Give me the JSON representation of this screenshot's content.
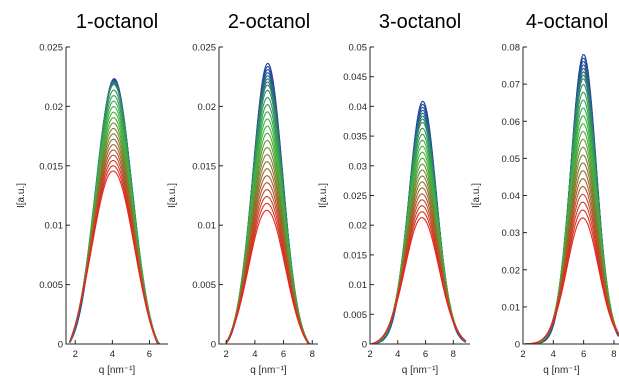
{
  "chart_data": [
    {
      "type": "line",
      "title": "1-octanol",
      "xlabel": "q [nm⁻¹]",
      "ylabel": "I[a.u.]",
      "xlim": [
        1.5,
        7.0
      ],
      "ylim": [
        0,
        0.025
      ],
      "xticks": [
        "2",
        "4",
        "6"
      ],
      "yticks": [
        "0",
        "0.005",
        "0.01",
        "0.015",
        "0.02",
        "0.025"
      ],
      "curve_range": [
        1.7,
        6.9
      ],
      "peak_position": 4.1,
      "peak_width": 0.95,
      "peak_heights": {
        "first_blue": 0.0232,
        "max_green": 0.0232,
        "last_red": 0.0165
      },
      "n_curves": 24,
      "grid": false
    },
    {
      "type": "line",
      "title": "2-octanol",
      "xlabel": "q [nm⁻¹]",
      "ylabel": "I[a.u.]",
      "xlim": [
        1.5,
        8.4
      ],
      "ylim": [
        0,
        0.025
      ],
      "xticks": [
        "2",
        "4",
        "6",
        "8"
      ],
      "yticks": [
        "0",
        "0.005",
        "0.01",
        "0.015",
        "0.02",
        "0.025"
      ],
      "curve_range": [
        2.0,
        8.3
      ],
      "peak_position": 4.9,
      "peak_width": 1.05,
      "peak_heights": {
        "first_blue": 0.0241,
        "max_green": 0.0224,
        "last_red": 0.0122
      },
      "n_curves": 26,
      "grid": false
    },
    {
      "type": "line",
      "title": "3-octanol",
      "xlabel": "q [nm⁻¹]",
      "ylabel": "I[a.u.]",
      "xlim": [
        2.0,
        9.2
      ],
      "ylim": [
        0,
        0.05
      ],
      "xticks": [
        "2",
        "4",
        "6",
        "8"
      ],
      "yticks": [
        "0",
        "0.005",
        "0.01",
        "0.015",
        "0.02",
        "0.025",
        "0.03",
        "0.035",
        "0.04",
        "0.045",
        "0.05"
      ],
      "curve_range": [
        2.1,
        8.9
      ],
      "peak_position": 5.8,
      "peak_width": 1.0,
      "peak_heights": {
        "first_blue": 0.0409,
        "max_green": 0.0375,
        "last_red": 0.0215
      },
      "n_curves": 24,
      "grid": false
    },
    {
      "type": "line",
      "title": "4-octanol",
      "xlabel": "q [nm⁻¹]",
      "ylabel": "I[a.u.]",
      "xlim": [
        2.0,
        8.4
      ],
      "ylim": [
        0,
        0.08
      ],
      "xticks": [
        "2",
        "4",
        "6",
        "8"
      ],
      "yticks": [
        "0",
        "0.01",
        "0.02",
        "0.03",
        "0.04",
        "0.05",
        "0.06",
        "0.07",
        "0.08"
      ],
      "curve_range": [
        2.1,
        8.3
      ],
      "peak_position": 6.0,
      "peak_width": 0.85,
      "peak_heights": {
        "first_blue": 0.078,
        "max_green": 0.071,
        "last_red": 0.034
      },
      "n_curves": 26,
      "grid": false
    }
  ],
  "colors": {
    "start_curve": "#1f3fa6",
    "middle_curve": "#3db83d",
    "end_curve": "#e8231e",
    "axis": "#262626"
  }
}
